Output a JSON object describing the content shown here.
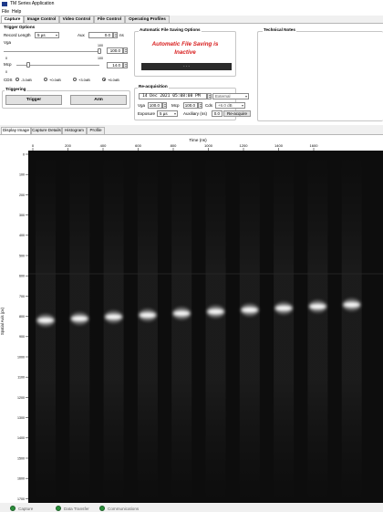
{
  "window": {
    "title": "TM Series Application"
  },
  "menu": [
    "File",
    "Help"
  ],
  "main_tabs": [
    "Capture",
    "Image Control",
    "Video Control",
    "File Control",
    "Operating Profiles"
  ],
  "trigger_options": {
    "title": "Trigger Options",
    "record_length_label": "Record Length",
    "record_length_value": "5 µs",
    "aux_label": "Aux",
    "aux_value": "0.0",
    "aux_unit": "ns",
    "vga_label": "Vga",
    "vga_value": "100.0",
    "vga_max": "100",
    "vga_min": "0",
    "mcp_label": "Mcp",
    "mcp_value": "14.0",
    "mcp_max": "100",
    "mcp_min": "0",
    "cds_label": "CDS",
    "cds_options": [
      "-3.0dB",
      "+0.0dB",
      "+3.0dB",
      "+6.0dB"
    ],
    "cds_selected": 3
  },
  "triggering": {
    "title": "Triggering",
    "trigger_label": "Trigger",
    "arm_label": "Arm"
  },
  "auto_save": {
    "title": "Automatic File Saving Options",
    "status_line1": "Automatic File Saving is",
    "status_line2": "Inactive",
    "bar_text": "- - -"
  },
  "reacquisition": {
    "title": "Re-acquisition",
    "datetime": "14 Dec 2021 05:08:08 PM",
    "trigger_mode": "External",
    "vga_label": "Vga",
    "vga_value": "100.0",
    "mcp_label": "Mcp",
    "mcp_value": "100.0",
    "cds_label": "Cds",
    "cds_value": "+6.0 dB",
    "exposure_label": "Exposure",
    "exposure_value": "5 µs",
    "auxiliary_label": "Auxiliary (ns)",
    "auxiliary_value": "0.0",
    "reacquire_label": "Re-acquire"
  },
  "technical_notes": {
    "title": "Technical Notes"
  },
  "view_tabs": [
    "Display Image",
    "Capture Details",
    "Histogram",
    "Profile"
  ],
  "plot": {
    "x_axis_title": "Time (ns)",
    "y_axis_title": "Spatial Axis (px)",
    "x_ticks": [
      "0",
      "200",
      "400",
      "600",
      "800",
      "1000",
      "1200",
      "1400",
      "1600"
    ],
    "y_ticks": [
      "0",
      "100",
      "200",
      "300",
      "400",
      "500",
      "600",
      "700",
      "800",
      "900",
      "1000",
      "1100",
      "1200",
      "1300",
      "1400",
      "1500",
      "1600",
      "1700"
    ],
    "band_count": 10
  },
  "status": [
    "Capture",
    "Data Transfer",
    "Communications"
  ],
  "colors": {
    "led": "#2a8f3a",
    "alert_text": "#d71a1a",
    "image_bg": "#0d0d0d"
  }
}
